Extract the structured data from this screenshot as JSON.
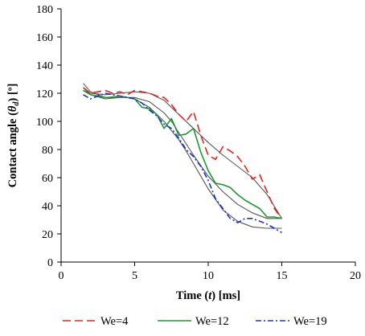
{
  "chart_data": {
    "type": "line",
    "xlabel": "Time (t) [ms]",
    "xlabel_parts": {
      "pre": "Time (",
      "var": "t",
      "post": ") [ms]"
    },
    "ylabel": "Contact angle (θd) [º]",
    "ylabel_parts": {
      "pre": "Contact angle (",
      "var": "θ",
      "sub": "d",
      "post": ") [º]"
    },
    "xlim": [
      0,
      20
    ],
    "ylim": [
      0,
      180
    ],
    "x_ticks": [
      "0",
      "5",
      "10",
      "15",
      "20"
    ],
    "y_ticks": [
      "0",
      "20",
      "40",
      "60",
      "80",
      "100",
      "120",
      "140",
      "160",
      "180"
    ],
    "grid": false,
    "legend_position": "bottom",
    "series": [
      {
        "name": "We=4",
        "color": "#e8231c",
        "dash": "long-dash",
        "x": [
          1.5,
          2.0,
          2.5,
          3.0,
          3.5,
          4.0,
          4.5,
          5.0,
          5.5,
          6.0,
          6.5,
          7.0,
          7.5,
          8.0,
          8.5,
          9.0,
          9.5,
          10.0,
          10.5,
          11.0,
          11.5,
          12.0,
          12.5,
          13.0,
          13.5,
          14.0,
          14.5,
          15.0
        ],
        "y": [
          124,
          120,
          121,
          122,
          120,
          121,
          119,
          122,
          121,
          120,
          118,
          117,
          112,
          105,
          100,
          107,
          90,
          76,
          73,
          82,
          79,
          75,
          68,
          59,
          62,
          50,
          38,
          31
        ]
      },
      {
        "name": "We=12",
        "color": "#1a9a2e",
        "dash": "solid",
        "x": [
          1.5,
          2.0,
          2.5,
          3.0,
          3.5,
          4.0,
          4.5,
          5.0,
          5.5,
          6.0,
          6.5,
          7.0,
          7.5,
          8.0,
          8.5,
          9.0,
          9.5,
          10.0,
          10.5,
          11.0,
          11.5,
          12.0,
          12.5,
          13.0,
          13.5,
          14.0,
          14.5,
          15.0
        ],
        "y": [
          122,
          119,
          118,
          117,
          117,
          118,
          117,
          116,
          110,
          109,
          105,
          95,
          102,
          90,
          91,
          95,
          78,
          65,
          56,
          55,
          53,
          48,
          44,
          41,
          38,
          32,
          32,
          31
        ]
      },
      {
        "name": "We=19",
        "color": "#1830d6",
        "dash": "dash-dot",
        "x": [
          1.5,
          2.0,
          2.5,
          3.0,
          3.5,
          4.0,
          4.5,
          5.0,
          5.5,
          6.0,
          6.5,
          7.0,
          7.5,
          8.0,
          8.5,
          9.0,
          9.5,
          10.0,
          10.5,
          11.0,
          11.5,
          12.0,
          12.5,
          13.0,
          13.5,
          14.0,
          14.5,
          15.0
        ],
        "y": [
          119,
          116,
          118,
          120,
          119,
          118,
          117,
          116,
          113,
          108,
          104,
          98,
          95,
          88,
          80,
          75,
          68,
          58,
          45,
          38,
          31,
          28,
          31,
          31,
          29,
          27,
          24,
          21
        ]
      }
    ],
    "fit_curves": [
      {
        "color": "#555555",
        "x": [
          1.5,
          2.0,
          3.0,
          4.0,
          5.0,
          6.0,
          7.0,
          8.0,
          9.0,
          10.0,
          11.0,
          12.0,
          13.0,
          14.0,
          15.0
        ],
        "y": [
          122,
          120,
          119,
          120,
          121,
          120,
          115,
          105,
          95,
          85,
          76,
          68,
          60,
          48,
          31
        ]
      },
      {
        "color": "#555555",
        "x": [
          1.5,
          2.0,
          3.0,
          4.0,
          5.0,
          6.0,
          7.0,
          7.5,
          8.0,
          9.0,
          10.0,
          11.0,
          12.0,
          13.0,
          14.0,
          15.0
        ],
        "y": [
          124,
          119,
          116,
          117,
          117,
          114,
          106,
          100,
          92,
          76,
          61,
          50,
          41,
          35,
          31,
          31
        ]
      },
      {
        "color": "#555555",
        "x": [
          1.5,
          2.0,
          3.0,
          4.0,
          5.0,
          6.0,
          7.0,
          8.0,
          8.5,
          9.0,
          10.0,
          11.0,
          12.0,
          13.0,
          14.0,
          15.0
        ],
        "y": [
          127,
          121,
          117,
          118,
          116,
          110,
          100,
          87,
          79,
          70,
          52,
          37,
          29,
          25,
          24,
          24
        ]
      }
    ]
  }
}
